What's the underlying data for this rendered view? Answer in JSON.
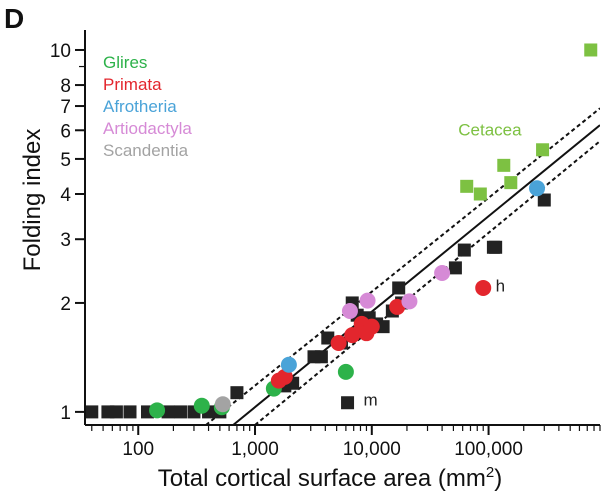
{
  "panel_label": "D",
  "chart_data": {
    "type": "scatter",
    "xlabel": "Total cortical surface area (mm",
    "xlabel_sup": "2",
    "xlabel_close": ")",
    "ylabel": "Folding index",
    "xscale": "log",
    "yscale": "log",
    "xlim": [
      35,
      900000
    ],
    "ylim": [
      0.92,
      11
    ],
    "x_ticks": [
      {
        "value": 100,
        "label": "100"
      },
      {
        "value": 1000,
        "label": "1,000"
      },
      {
        "value": 10000,
        "label": "10,000"
      },
      {
        "value": 100000,
        "label": "100,000"
      }
    ],
    "y_ticks": [
      {
        "value": 1,
        "label": "1"
      },
      {
        "value": 2,
        "label": "2"
      },
      {
        "value": 3,
        "label": "3"
      },
      {
        "value": 4,
        "label": "4"
      },
      {
        "value": 5,
        "label": "5"
      },
      {
        "value": 6,
        "label": "6"
      },
      {
        "value": 7,
        "label": "7"
      },
      {
        "value": 8,
        "label": "8"
      },
      {
        "value": 10,
        "label": "10"
      }
    ],
    "legend": [
      {
        "label": "Glires",
        "color": "#2db24a"
      },
      {
        "label": "Primata",
        "color": "#e3262d"
      },
      {
        "label": "Afrotheria",
        "color": "#4aa3d8"
      },
      {
        "label": "Artiodactyla",
        "color": "#d68ad6"
      },
      {
        "label": "Scandentia",
        "color": "#a3a3a3"
      }
    ],
    "legend_position": "top-left",
    "series": [
      {
        "marker": "square",
        "color": "#222222",
        "points": [
          [
            40,
            1
          ],
          [
            55,
            1
          ],
          [
            65,
            1
          ],
          [
            85,
            1
          ],
          [
            120,
            1
          ],
          [
            180,
            1
          ],
          [
            230,
            1
          ],
          [
            300,
            1
          ],
          [
            400,
            1
          ],
          [
            500,
            1
          ],
          [
            700,
            1.13
          ],
          [
            1800,
            1.18
          ],
          [
            2100,
            1.2
          ],
          [
            3200,
            1.42
          ],
          [
            3700,
            1.42
          ],
          [
            4200,
            1.6
          ],
          [
            5500,
            1.55
          ],
          [
            6800,
            2
          ],
          [
            7500,
            1.85
          ],
          [
            9500,
            1.82
          ],
          [
            11000,
            1.75
          ],
          [
            12500,
            1.72
          ],
          [
            15000,
            1.9
          ],
          [
            17000,
            2.2
          ],
          [
            18000,
            2
          ],
          [
            52000,
            2.5
          ],
          [
            62000,
            2.8
          ],
          [
            110000,
            2.85
          ],
          [
            115000,
            2.85
          ],
          [
            300000,
            3.85
          ],
          [
            6200,
            1.06
          ]
        ]
      },
      {
        "marker": "square",
        "color": "#7dc142",
        "points": [
          [
            750000,
            10
          ],
          [
            65000,
            4.2
          ],
          [
            85000,
            4
          ],
          [
            135000,
            4.8
          ],
          [
            155000,
            4.3
          ],
          [
            290000,
            5.3
          ]
        ]
      },
      {
        "name": "Glires",
        "marker": "circle",
        "color": "#2db24a",
        "points": [
          [
            145,
            1.01
          ],
          [
            350,
            1.04
          ],
          [
            520,
            1.03
          ],
          [
            1450,
            1.16
          ],
          [
            6000,
            1.29
          ]
        ]
      },
      {
        "name": "Primata",
        "marker": "circle",
        "color": "#e3262d",
        "points": [
          [
            1600,
            1.22
          ],
          [
            1800,
            1.25
          ],
          [
            5200,
            1.55
          ],
          [
            6800,
            1.63
          ],
          [
            8200,
            1.75
          ],
          [
            9000,
            1.65
          ],
          [
            10000,
            1.72
          ],
          [
            16500,
            1.95
          ],
          [
            90000,
            2.2
          ]
        ]
      },
      {
        "name": "Afrotheria",
        "marker": "circle",
        "color": "#4aa3d8",
        "points": [
          [
            1950,
            1.35
          ],
          [
            260000,
            4.15
          ]
        ]
      },
      {
        "name": "Artiodactyla",
        "marker": "circle",
        "color": "#d68ad6",
        "points": [
          [
            6500,
            1.9
          ],
          [
            9200,
            2.03
          ],
          [
            21000,
            2.02
          ],
          [
            40000,
            2.42
          ]
        ]
      },
      {
        "name": "Scandentia",
        "marker": "circle",
        "color": "#a3a3a3",
        "points": [
          [
            530,
            1.05
          ]
        ]
      }
    ],
    "lines": [
      {
        "style": "solid",
        "points": [
          [
            650,
            0.92
          ],
          [
            900000,
            6.2
          ]
        ]
      },
      {
        "style": "dotted",
        "points": [
          [
            380,
            0.92
          ],
          [
            900000,
            6.9
          ]
        ]
      },
      {
        "style": "dotted",
        "points": [
          [
            1000,
            0.92
          ],
          [
            900000,
            5.6
          ]
        ]
      }
    ],
    "annotations": [
      {
        "text": "Cetacea",
        "x": 55000,
        "y": 5.8,
        "color": "#7dc142"
      },
      {
        "text": "h",
        "x": 115000,
        "y": 2.15,
        "color": "#222222"
      },
      {
        "text": "m",
        "x": 8500,
        "y": 1.04,
        "color": "#222222"
      }
    ]
  }
}
